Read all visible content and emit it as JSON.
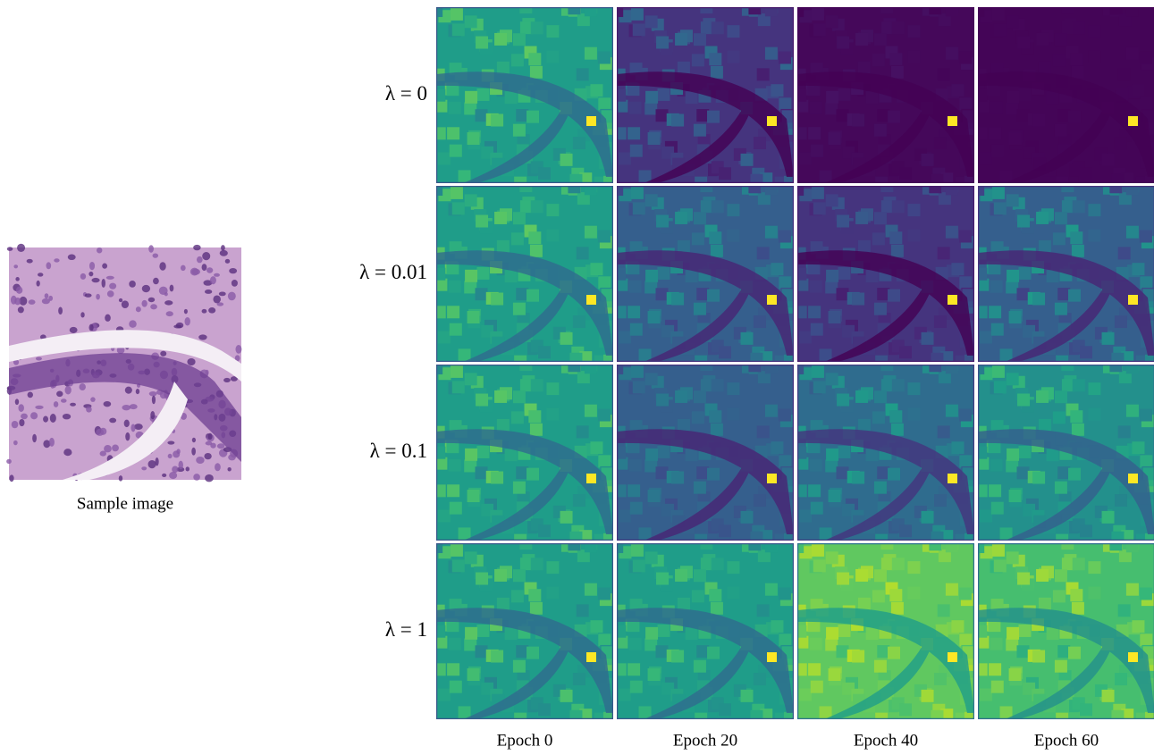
{
  "sample_caption": "Sample image",
  "rows": [
    "λ = 0",
    "λ = 0.01",
    "λ = 0.1",
    "λ = 1"
  ],
  "columns": [
    "Epoch 0",
    "Epoch 20",
    "Epoch 40",
    "Epoch 60"
  ]
}
